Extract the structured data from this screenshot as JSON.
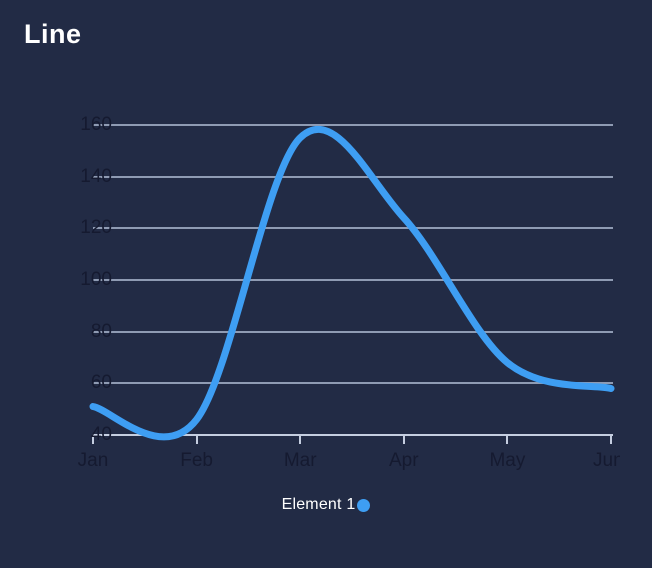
{
  "title": "Line",
  "legend": {
    "label": "Element 1",
    "marker_color": "#3E9EF3"
  },
  "colors": {
    "background": "#222B45",
    "line": "#3E9EF3",
    "grid": "#8F9BB3",
    "axis": "#C5CEE0",
    "tick_label": "#151A30",
    "title_text": "#FFFFFF"
  },
  "chart_data": {
    "type": "line",
    "title": "Line",
    "categories": [
      "Jan",
      "Feb",
      "Mar",
      "Apr",
      "May",
      "Jun"
    ],
    "series": [
      {
        "name": "Element 1",
        "values": [
          51,
          46,
          155,
          124,
          68,
          58
        ]
      }
    ],
    "yticks": [
      40,
      60,
      80,
      100,
      120,
      140,
      160
    ],
    "ylim": [
      40,
      160
    ],
    "xlabel": "",
    "ylabel": "",
    "grid": true,
    "smooth": true,
    "legend_position": "bottom",
    "last_x_label_clipped": true
  }
}
